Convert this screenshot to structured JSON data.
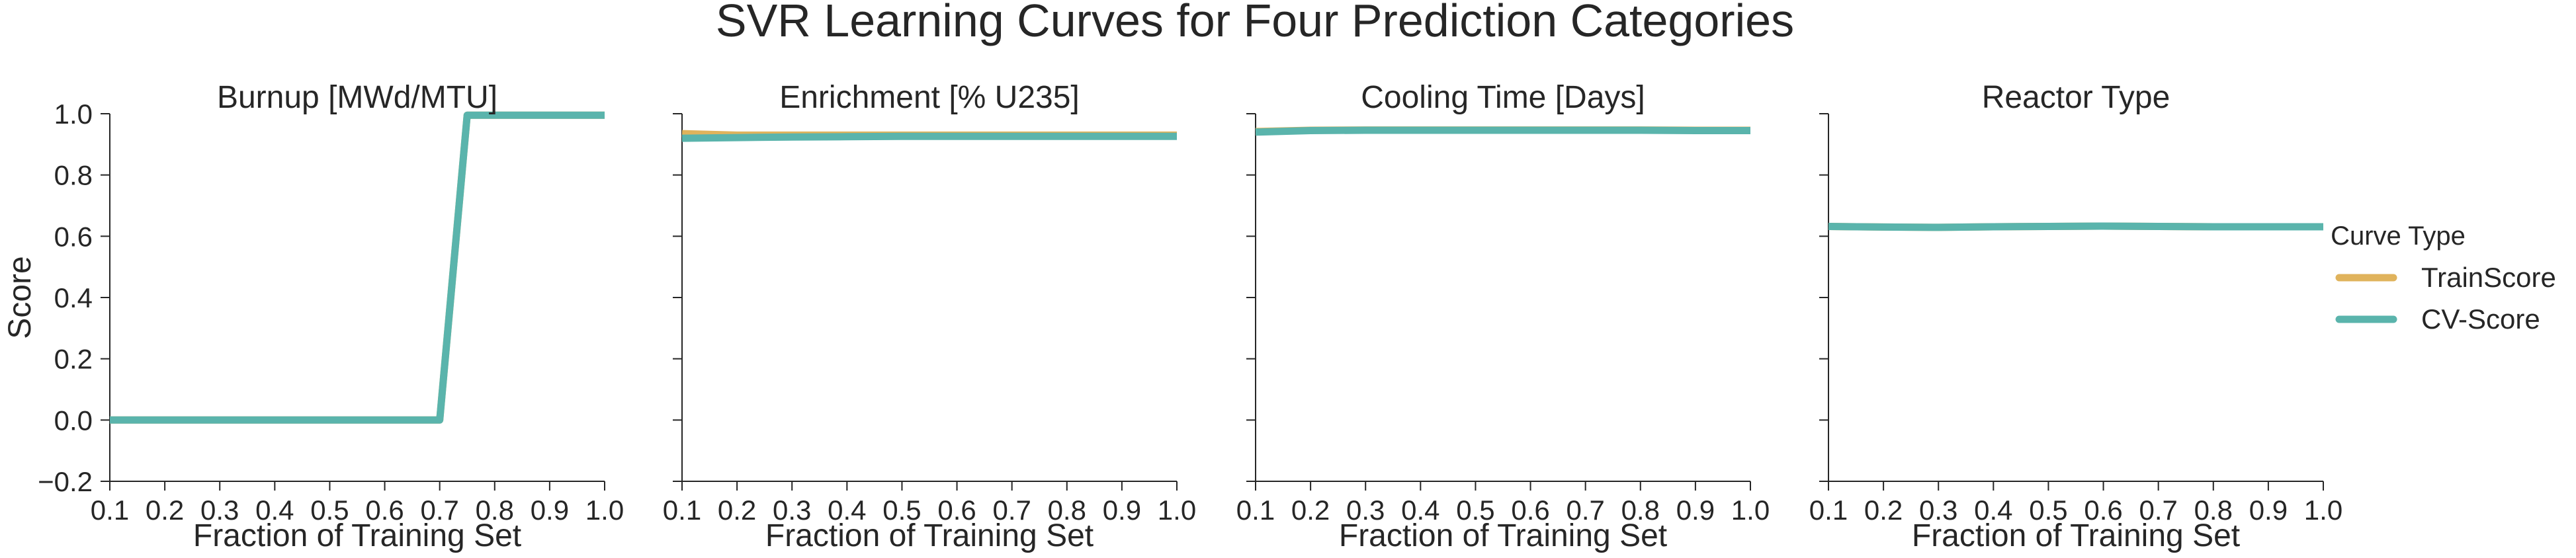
{
  "figure": {
    "suptitle": "SVR Learning Curves for Four Prediction Categories",
    "legend": {
      "title": "Curve Type",
      "placement": "right",
      "entries": [
        {
          "name": "TrainScore",
          "color": "#e0b35c"
        },
        {
          "name": "CV-Score",
          "color": "#5ab4ac"
        }
      ]
    }
  },
  "chart_data": [
    {
      "type": "line",
      "title": "Burnup [MWd/MTU]",
      "xlabel": "Fraction of Training Set",
      "ylabel": "Score",
      "xlim": [
        0.1,
        1.0
      ],
      "ylim": [
        -0.2,
        1.0
      ],
      "xticks": [
        "0.1",
        "0.2",
        "0.3",
        "0.4",
        "0.5",
        "0.6",
        "0.7",
        "0.8",
        "0.9",
        "1.0"
      ],
      "yticks": [
        "−0.2",
        "0.0",
        "0.2",
        "0.4",
        "0.6",
        "0.8",
        "1.0"
      ],
      "grid": false,
      "x": [
        0.1,
        0.2,
        0.3,
        0.4,
        0.5,
        0.6,
        0.7,
        0.75,
        0.8,
        0.9,
        1.0
      ],
      "series": [
        {
          "name": "TrainScore",
          "values": [
            0.0,
            0.0,
            0.0,
            0.0,
            0.0,
            0.0,
            0.0,
            0.995,
            0.995,
            0.995,
            0.995
          ]
        },
        {
          "name": "CV-Score",
          "values": [
            0.0,
            0.0,
            0.0,
            0.0,
            0.0,
            0.0,
            0.0,
            0.995,
            0.995,
            0.995,
            0.995
          ]
        }
      ]
    },
    {
      "type": "line",
      "title": "Enrichment [% U235]",
      "xlabel": "Fraction of Training Set",
      "ylabel": "",
      "xlim": [
        0.1,
        1.0
      ],
      "ylim": [
        -0.2,
        1.0
      ],
      "xticks": [
        "0.1",
        "0.2",
        "0.3",
        "0.4",
        "0.5",
        "0.6",
        "0.7",
        "0.8",
        "0.9",
        "1.0"
      ],
      "yticks": [],
      "grid": false,
      "x": [
        0.1,
        0.2,
        0.3,
        0.4,
        0.5,
        0.6,
        0.7,
        0.8,
        0.9,
        1.0
      ],
      "series": [
        {
          "name": "TrainScore",
          "values": [
            0.935,
            0.93,
            0.93,
            0.93,
            0.93,
            0.93,
            0.93,
            0.93,
            0.93,
            0.93
          ]
        },
        {
          "name": "CV-Score",
          "values": [
            0.92,
            0.922,
            0.924,
            0.925,
            0.926,
            0.926,
            0.926,
            0.926,
            0.926,
            0.926
          ]
        }
      ]
    },
    {
      "type": "line",
      "title": "Cooling Time [Days]",
      "xlabel": "Fraction of Training Set",
      "ylabel": "",
      "xlim": [
        0.1,
        1.0
      ],
      "ylim": [
        -0.2,
        1.0
      ],
      "xticks": [
        "0.1",
        "0.2",
        "0.3",
        "0.4",
        "0.5",
        "0.6",
        "0.7",
        "0.8",
        "0.9",
        "1.0"
      ],
      "yticks": [],
      "grid": false,
      "x": [
        0.1,
        0.2,
        0.3,
        0.4,
        0.5,
        0.6,
        0.7,
        0.8,
        0.9,
        1.0
      ],
      "series": [
        {
          "name": "TrainScore",
          "values": [
            0.942,
            0.946,
            0.947,
            0.947,
            0.947,
            0.947,
            0.947,
            0.947,
            0.946,
            0.946
          ]
        },
        {
          "name": "CV-Score",
          "values": [
            0.94,
            0.945,
            0.946,
            0.946,
            0.946,
            0.946,
            0.946,
            0.946,
            0.945,
            0.945
          ]
        }
      ]
    },
    {
      "type": "line",
      "title": "Reactor Type",
      "xlabel": "Fraction of Training Set",
      "ylabel": "",
      "xlim": [
        0.1,
        1.0
      ],
      "ylim": [
        -0.2,
        1.0
      ],
      "xticks": [
        "0.1",
        "0.2",
        "0.3",
        "0.4",
        "0.5",
        "0.6",
        "0.7",
        "0.8",
        "0.9",
        "1.0"
      ],
      "yticks": [],
      "grid": false,
      "x": [
        0.1,
        0.2,
        0.3,
        0.4,
        0.5,
        0.6,
        0.7,
        0.8,
        0.9,
        1.0
      ],
      "series": [
        {
          "name": "TrainScore",
          "values": [
            0.632,
            0.63,
            0.629,
            0.631,
            0.632,
            0.633,
            0.632,
            0.631,
            0.631,
            0.631
          ]
        },
        {
          "name": "CV-Score",
          "values": [
            0.632,
            0.63,
            0.629,
            0.631,
            0.632,
            0.633,
            0.632,
            0.631,
            0.631,
            0.631
          ]
        }
      ]
    }
  ]
}
